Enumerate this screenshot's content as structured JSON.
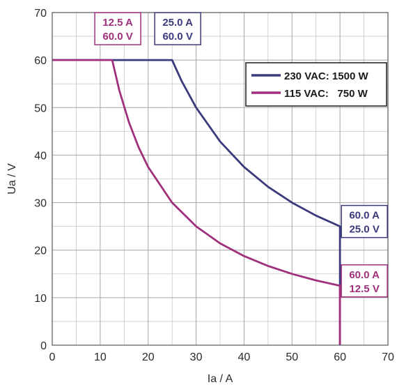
{
  "chart_data": {
    "type": "line",
    "title": "",
    "xlabel": "Ia / A",
    "ylabel": "Ua / V",
    "xlim": [
      0,
      70
    ],
    "ylim": [
      0,
      70
    ],
    "xticks": [
      0,
      10,
      20,
      30,
      40,
      50,
      60,
      70
    ],
    "yticks": [
      0,
      10,
      20,
      30,
      40,
      50,
      60,
      70
    ],
    "x_minor_step": 5,
    "y_minor_step": 5,
    "grid": true,
    "legend_position": "top-right",
    "series": [
      {
        "name": "230 VAC: 1500 W",
        "color": "#3a3a7c",
        "points": [
          [
            0,
            60
          ],
          [
            25,
            60
          ],
          [
            27,
            55.56
          ],
          [
            30,
            50
          ],
          [
            35,
            42.86
          ],
          [
            40,
            37.5
          ],
          [
            45,
            33.33
          ],
          [
            50,
            30
          ],
          [
            55,
            27.27
          ],
          [
            60,
            25
          ],
          [
            60,
            0
          ]
        ]
      },
      {
        "name": "115 VAC:   750 W",
        "color": "#a0307c",
        "points": [
          [
            0,
            60
          ],
          [
            12.5,
            60
          ],
          [
            14,
            53.57
          ],
          [
            16,
            46.88
          ],
          [
            18,
            41.67
          ],
          [
            20,
            37.5
          ],
          [
            25,
            30
          ],
          [
            30,
            25
          ],
          [
            35,
            21.43
          ],
          [
            40,
            18.75
          ],
          [
            45,
            16.67
          ],
          [
            50,
            15
          ],
          [
            55,
            13.64
          ],
          [
            60,
            12.5
          ],
          [
            60,
            0
          ]
        ]
      }
    ],
    "annotations": [
      {
        "series": 1,
        "line1": "12.5 A",
        "line2": "60.0 V",
        "color": "#a0307c",
        "at": [
          12.5,
          60
        ]
      },
      {
        "series": 0,
        "line1": "25.0 A",
        "line2": "60.0 V",
        "color": "#3a3a7c",
        "at": [
          25,
          60
        ]
      },
      {
        "series": 0,
        "line1": "60.0 A",
        "line2": "25.0 V",
        "color": "#3a3a7c",
        "at": [
          60,
          25
        ]
      },
      {
        "series": 1,
        "line1": "60.0 A",
        "line2": "12.5 V",
        "color": "#a0307c",
        "at": [
          60,
          12.5
        ]
      }
    ]
  }
}
